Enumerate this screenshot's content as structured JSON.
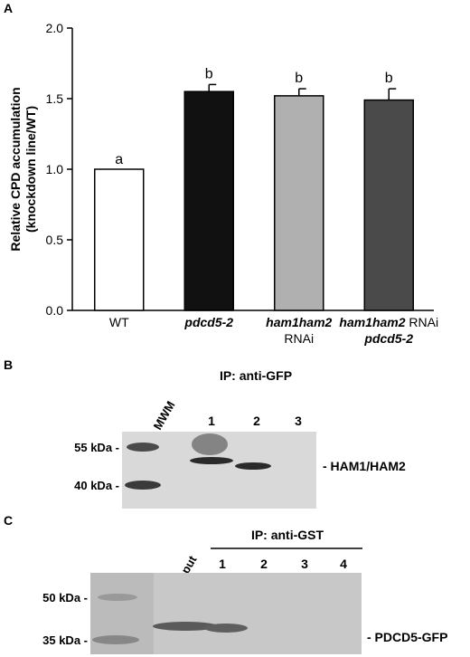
{
  "panels": {
    "a": {
      "letter": "A"
    },
    "b": {
      "letter": "B",
      "ip_title": "IP: anti-GFP",
      "mwm_label": "MWM",
      "lanes": [
        "1",
        "2",
        "3"
      ],
      "markers": [
        "55 kDa -",
        "40 kDa -"
      ],
      "band_label": "- HAM1/HAM2"
    },
    "c": {
      "letter": "C",
      "ip_title": "IP: anti-GST",
      "input_label": "input",
      "lanes": [
        "1",
        "2",
        "3",
        "4"
      ],
      "markers": [
        "50 kDa -",
        "35 kDa -"
      ],
      "band_label": "- PDCD5-GFP"
    }
  },
  "chart_data": {
    "type": "bar",
    "title": "",
    "ylabel_line1": "Relative CPD accumulation",
    "ylabel_line2": "(knockdown line/WT)",
    "ylim": [
      0,
      2.0
    ],
    "yticks": [
      "0.0",
      "0.5",
      "1.0",
      "1.5",
      "2.0"
    ],
    "categories": [
      {
        "lines": [
          {
            "t": "WT",
            "italic": false
          }
        ]
      },
      {
        "lines": [
          {
            "t": "pdcd5-2",
            "italic": true
          }
        ]
      },
      {
        "lines": [
          {
            "t": "ham1ham2",
            "italic": true
          },
          {
            "t": "RNAi",
            "italic": false
          }
        ]
      },
      {
        "lines": [
          {
            "t": "ham1ham2",
            "italic": true,
            "suffix": " RNAi"
          },
          {
            "t": "pdcd5-2",
            "italic": true
          }
        ]
      }
    ],
    "values": [
      1.0,
      1.55,
      1.52,
      1.49
    ],
    "errors": [
      0,
      0.05,
      0.05,
      0.08
    ],
    "letters": [
      "a",
      "b",
      "b",
      "b"
    ],
    "bar_colors": [
      "#ffffff",
      "#111111",
      "#b0b0b0",
      "#4a4a4a"
    ]
  }
}
